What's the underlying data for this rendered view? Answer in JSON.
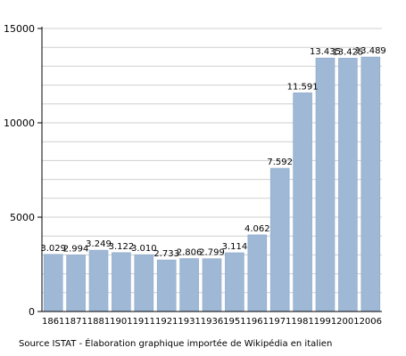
{
  "chart_data": {
    "type": "bar",
    "categories": [
      "1861",
      "1871",
      "1881",
      "1901",
      "1911",
      "1921",
      "1931",
      "1936",
      "1951",
      "1961",
      "1971",
      "1981",
      "1991",
      "2001",
      "2006"
    ],
    "values": [
      3029,
      2994,
      3249,
      3122,
      3010,
      2733,
      2806,
      2799,
      3114,
      4062,
      7592,
      11591,
      13435,
      13425,
      13489
    ],
    "value_labels": [
      "3.029",
      "2.994",
      "3.249",
      "3.122",
      "3.010",
      "2.733",
      "2.806",
      "2.799",
      "3.114",
      "4.062",
      "7.592",
      "11.591",
      "13.435",
      "13.425",
      "13.489"
    ],
    "ylim": [
      0,
      15000
    ],
    "yticks": [
      0,
      5000,
      10000,
      15000
    ],
    "grid": true,
    "colors": {
      "bar": "#9fb8d6",
      "bar_edge": "#8ea9cb",
      "grid": "#cfcfcf",
      "axis": "#000000"
    }
  },
  "source_note": "Source ISTAT - Élaboration graphique importée de Wikipédia en italien"
}
